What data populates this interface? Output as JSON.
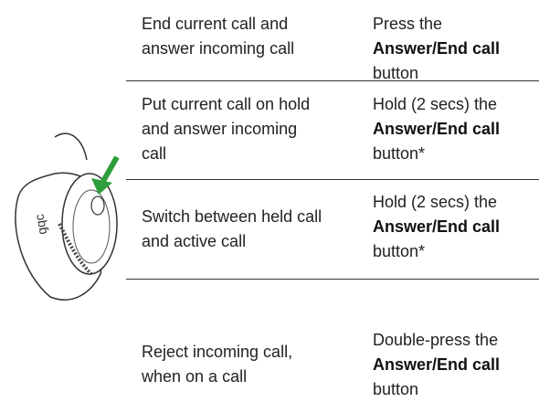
{
  "table": {
    "rows": [
      {
        "action": "End current call and answer incoming call",
        "instruction": {
          "before": "Press the ",
          "bold": "Answer/End call",
          "after": " button"
        }
      },
      {
        "action": "Put current call on hold and answer incoming call",
        "instruction": {
          "before": "Hold (2 secs) the ",
          "bold": "Answer/End call",
          "after": " button*"
        }
      },
      {
        "action": "Switch between held call and active call",
        "instruction": {
          "before": "Hold (2 secs) the ",
          "bold": "Answer/End call",
          "after": " button*"
        }
      },
      {
        "action": "Reject incoming call, when on a call",
        "instruction": {
          "before": "Double-press the ",
          "bold": "Answer/End call",
          "after": " button"
        }
      }
    ]
  }
}
